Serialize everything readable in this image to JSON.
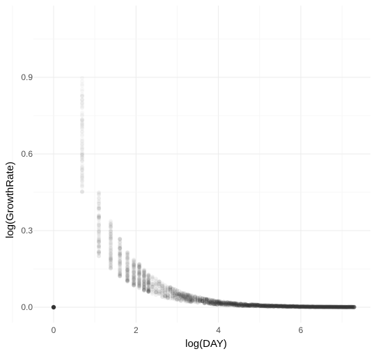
{
  "chart_data": {
    "type": "scatter",
    "title": "",
    "xlabel": "log(DAY)",
    "ylabel": "log(GrowthRate)",
    "xlim": [
      -0.25,
      7.5
    ],
    "ylim": [
      -0.05,
      1.1
    ],
    "x_ticks": [
      0,
      2,
      4,
      6
    ],
    "y_ticks": [
      0.0,
      0.3,
      0.6,
      0.9
    ],
    "x_tick_labels": [
      "0",
      "2",
      "4",
      "6"
    ],
    "y_tick_labels": [
      "0.0",
      "0.3",
      "0.6",
      "0.9"
    ],
    "grid": true,
    "point_color": "#333333",
    "description_of_points": "Semi-transparent points; vertical columns at x = log(n) for integer days n, with y ranging roughly between about 0.65×log(1.34^(1/n)) bands decaying toward 0 as x increases. One solid point at (0, 0).",
    "columns": [
      {
        "x": 0.0,
        "y_min": 0.0,
        "y_max": 0.0
      },
      {
        "x": 0.693,
        "y_min": 0.45,
        "y_max": 0.9
      },
      {
        "x": 1.099,
        "y_min": 0.2,
        "y_max": 0.45
      },
      {
        "x": 1.386,
        "y_min": 0.15,
        "y_max": 0.34
      },
      {
        "x": 1.609,
        "y_min": 0.12,
        "y_max": 0.27
      },
      {
        "x": 1.792,
        "y_min": 0.1,
        "y_max": 0.22
      },
      {
        "x": 1.946,
        "y_min": 0.085,
        "y_max": 0.19
      },
      {
        "x": 2.079,
        "y_min": 0.075,
        "y_max": 0.17
      },
      {
        "x": 2.197,
        "y_min": 0.065,
        "y_max": 0.15
      },
      {
        "x": 2.303,
        "y_min": 0.06,
        "y_max": 0.135
      }
    ],
    "tail_x_max": 7.3
  }
}
